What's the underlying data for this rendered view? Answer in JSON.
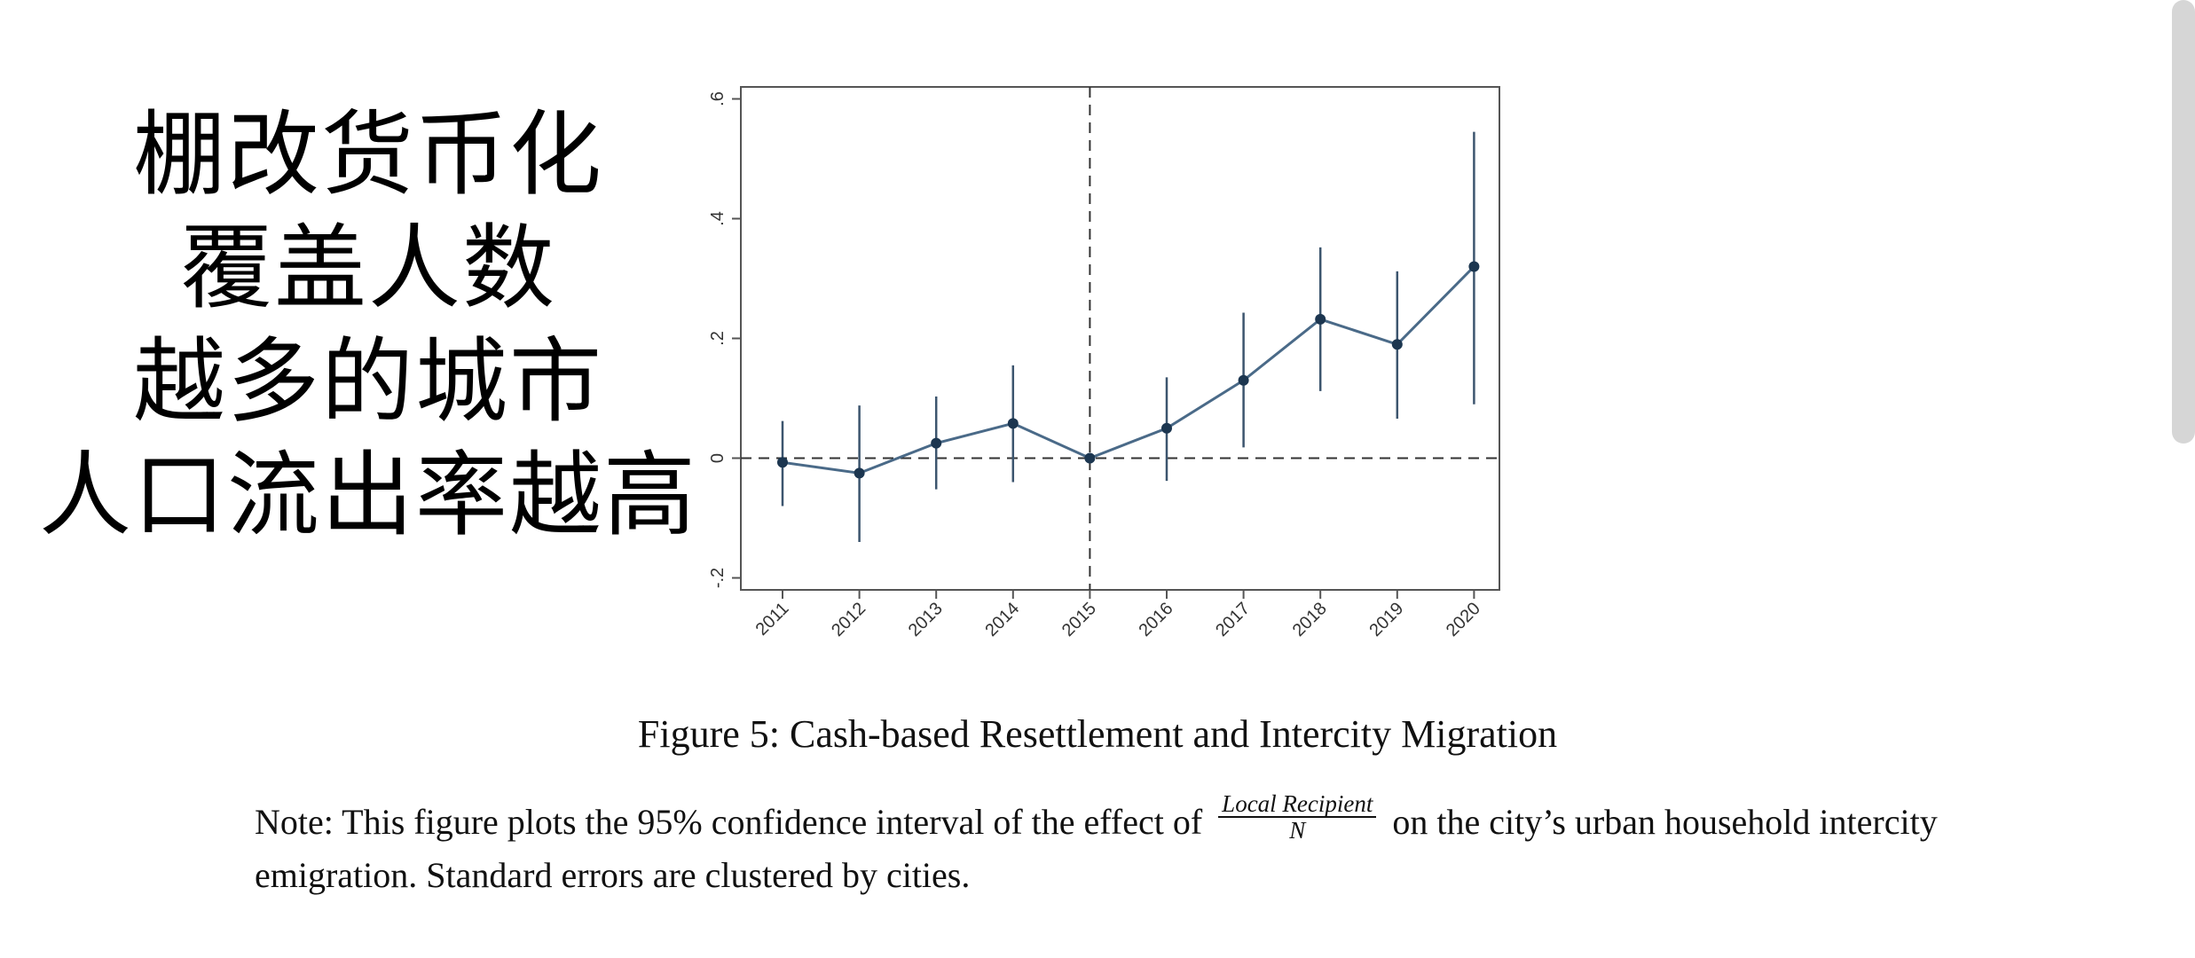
{
  "overlay_text": {
    "line1": "棚改货币化",
    "line2": "覆盖人数",
    "line3": "越多的城市",
    "line4": "人口流出率越高"
  },
  "caption": "Figure 5: Cash-based Resettlement and Intercity Migration",
  "note": {
    "before": "Note: This figure plots the 95% confidence interval of the effect of",
    "frac_numerator": "Local Recipient",
    "frac_denominator": "N",
    "after": "on the city’s urban household intercity emigration. Standard errors are clustered by cities."
  },
  "chart_data": {
    "type": "line",
    "x": [
      "2011",
      "2012",
      "2013",
      "2014",
      "2015",
      "2016",
      "2017",
      "2018",
      "2019",
      "2020"
    ],
    "values": [
      -0.007,
      -0.025,
      0.025,
      0.058,
      0.0,
      0.05,
      0.13,
      0.232,
      0.19,
      0.32
    ],
    "ci_low": [
      -0.08,
      -0.14,
      -0.052,
      -0.04,
      0.0,
      -0.038,
      0.018,
      0.112,
      0.066,
      0.09
    ],
    "ci_high": [
      0.062,
      0.088,
      0.103,
      0.155,
      0.0,
      0.135,
      0.243,
      0.352,
      0.312,
      0.545
    ],
    "ylim": [
      -0.22,
      0.62
    ],
    "yticks": [
      -0.2,
      0,
      0.2,
      0.4,
      0.6
    ],
    "ytick_labels": [
      "-.2",
      "0",
      ".2",
      ".4",
      ".6"
    ],
    "reference_x": "2015",
    "reference_y": 0,
    "title": "",
    "xlabel": "",
    "ylabel": "",
    "colors": {
      "line": "#4a6a88",
      "marker": "#1c3650",
      "ci": "#3c556e",
      "frame": "#555555",
      "refline": "#333333"
    }
  }
}
